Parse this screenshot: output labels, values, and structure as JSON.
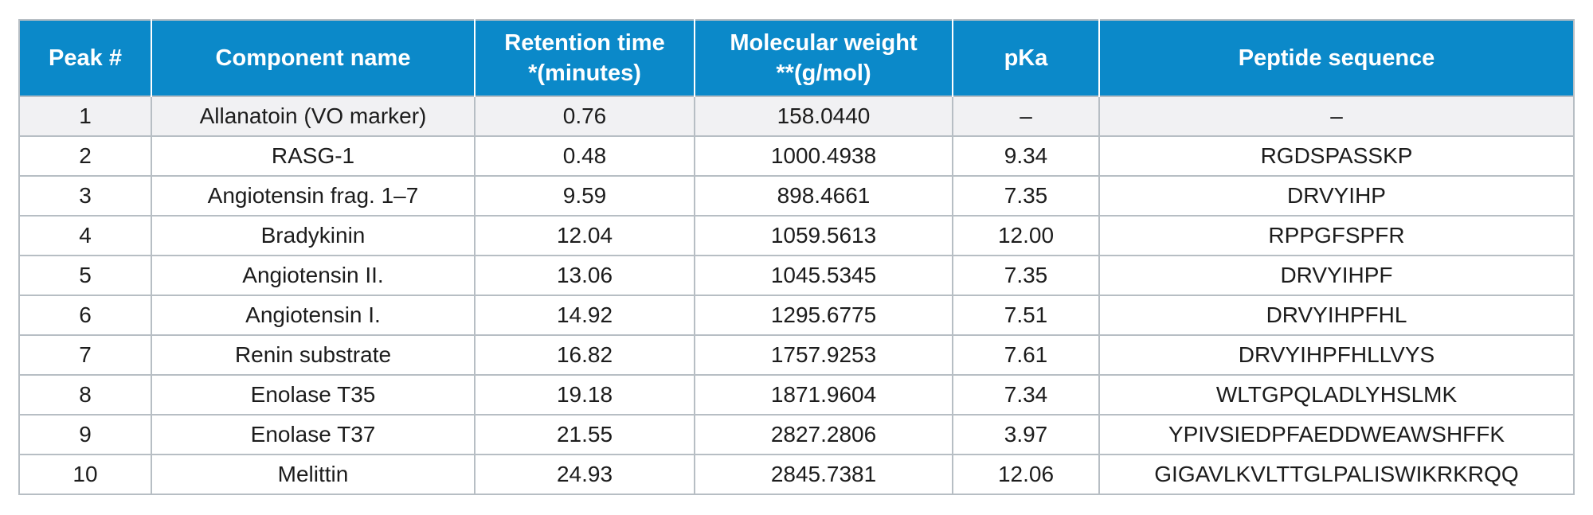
{
  "table": {
    "headers": [
      {
        "line1": "Peak #",
        "line2": ""
      },
      {
        "line1": "Component name",
        "line2": ""
      },
      {
        "line1": "Retention time",
        "line2": "*(minutes)"
      },
      {
        "line1": "Molecular weight",
        "line2": "**(g/mol)"
      },
      {
        "line1": "pKa",
        "line2": ""
      },
      {
        "line1": "Peptide sequence",
        "line2": ""
      }
    ],
    "rows": [
      {
        "peak": "1",
        "component": "Allanatoin (VO marker)",
        "retention_time": "0.76",
        "molecular_weight": "158.0440",
        "pka": "–",
        "sequence": "–"
      },
      {
        "peak": "2",
        "component": "RASG-1",
        "retention_time": "0.48",
        "molecular_weight": "1000.4938",
        "pka": "9.34",
        "sequence": "RGDSPASSKP"
      },
      {
        "peak": "3",
        "component": "Angiotensin frag. 1–7",
        "retention_time": "9.59",
        "molecular_weight": "898.4661",
        "pka": "7.35",
        "sequence": "DRVYIHP"
      },
      {
        "peak": "4",
        "component": "Bradykinin",
        "retention_time": "12.04",
        "molecular_weight": "1059.5613",
        "pka": "12.00",
        "sequence": "RPPGFSPFR"
      },
      {
        "peak": "5",
        "component": "Angiotensin II.",
        "retention_time": "13.06",
        "molecular_weight": "1045.5345",
        "pka": "7.35",
        "sequence": "DRVYIHPF"
      },
      {
        "peak": "6",
        "component": "Angiotensin I.",
        "retention_time": "14.92",
        "molecular_weight": "1295.6775",
        "pka": "7.51",
        "sequence": "DRVYIHPFHL"
      },
      {
        "peak": "7",
        "component": "Renin substrate",
        "retention_time": "16.82",
        "molecular_weight": "1757.9253",
        "pka": "7.61",
        "sequence": "DRVYIHPFHLLVYS"
      },
      {
        "peak": "8",
        "component": "Enolase T35",
        "retention_time": "19.18",
        "molecular_weight": "1871.9604",
        "pka": "7.34",
        "sequence": "WLTGPQLADLYHSLMK"
      },
      {
        "peak": "9",
        "component": "Enolase T37",
        "retention_time": "21.55",
        "molecular_weight": "2827.2806",
        "pka": "3.97",
        "sequence": "YPIVSIEDPFAEDDWEAWSHFFK"
      },
      {
        "peak": "10",
        "component": "Melittin",
        "retention_time": "24.93",
        "molecular_weight": "2845.7381",
        "pka": "12.06",
        "sequence": "GIGAVLKVLTTGLPALISWIKRKRQQ"
      }
    ]
  },
  "colors": {
    "header_background": "#0b89c9",
    "header_text": "#ffffff",
    "border": "#b7bec4",
    "first_row_background": "#f1f1f3"
  }
}
